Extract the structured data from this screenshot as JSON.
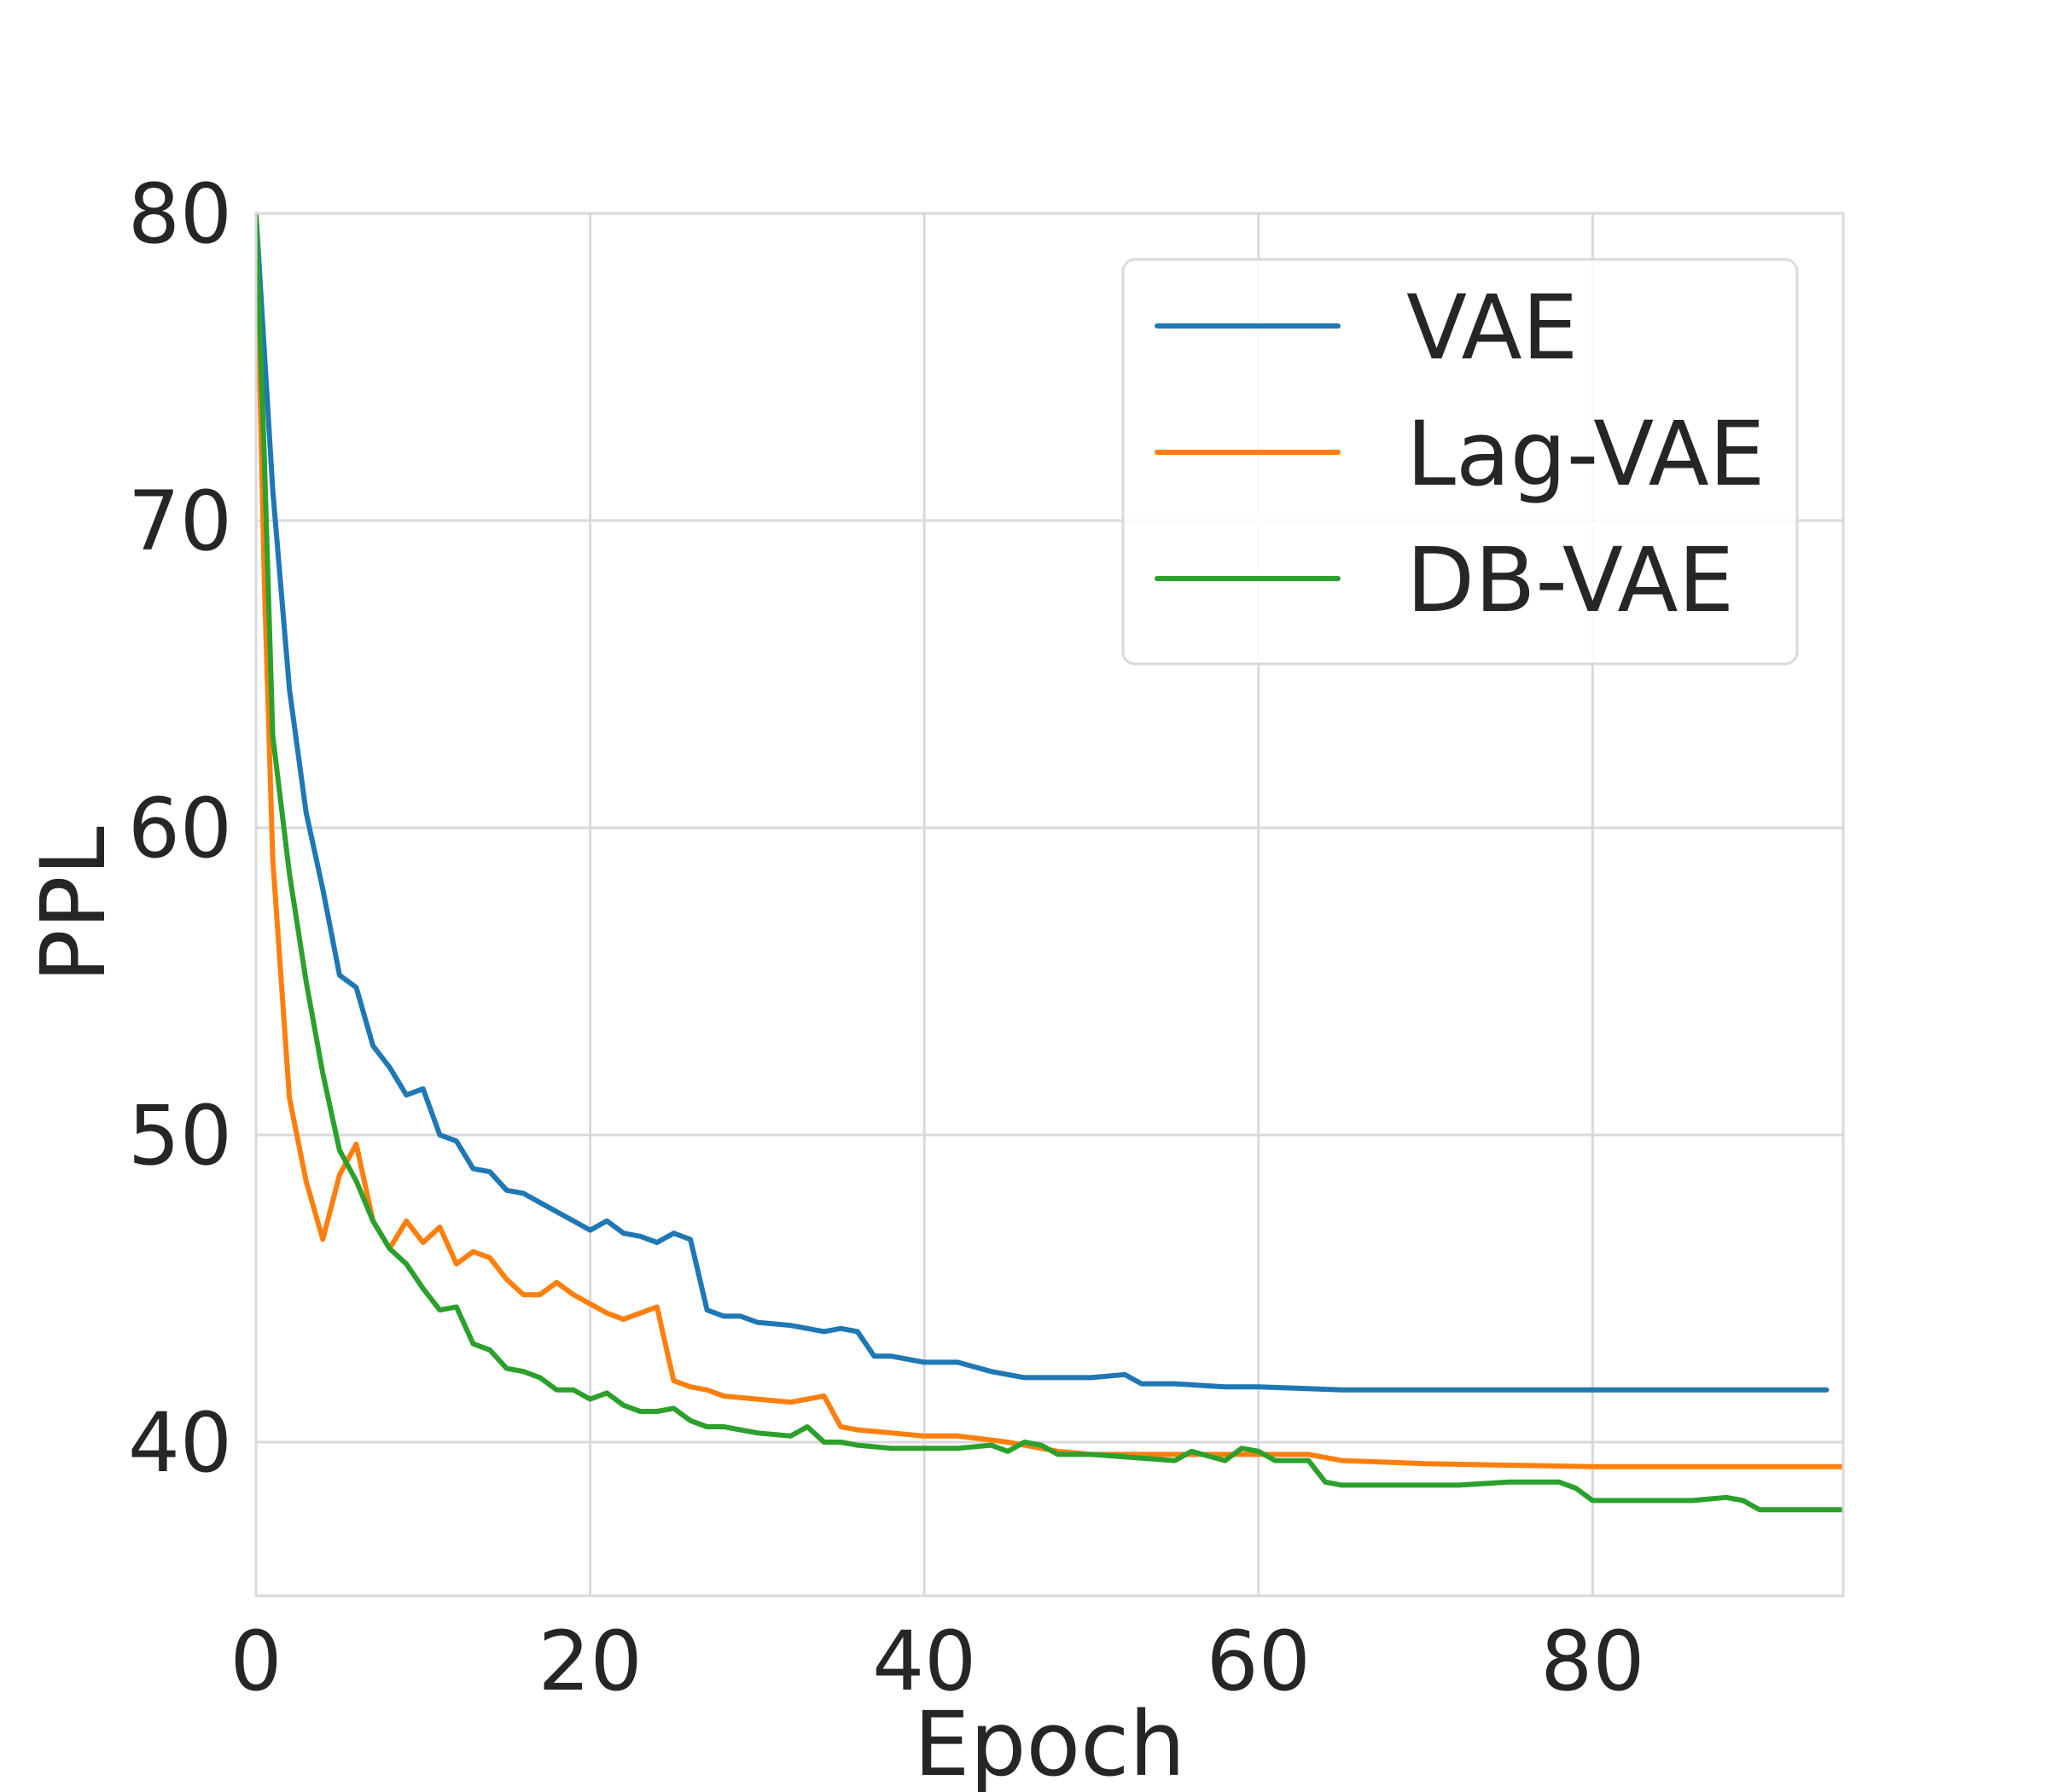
{
  "chart_data": {
    "type": "line",
    "title": "",
    "xlabel": "Epoch",
    "ylabel": "PPL",
    "xlim": [
      0,
      95
    ],
    "ylim": [
      35,
      80
    ],
    "xticks": [
      0,
      20,
      40,
      60,
      80
    ],
    "yticks": [
      40,
      50,
      60,
      70,
      80
    ],
    "xtick_labels": [
      "0",
      "20",
      "40",
      "60",
      "80"
    ],
    "ytick_labels": [
      "40",
      "50",
      "60",
      "70",
      "80"
    ],
    "grid": true,
    "legend_position": "top-right",
    "series": [
      {
        "name": "VAE",
        "color": "#1f77b4",
        "x": [
          0,
          1,
          2,
          3,
          4,
          5,
          6,
          7,
          8,
          9,
          10,
          11,
          12,
          13,
          14,
          15,
          16,
          17,
          18,
          19,
          20,
          21,
          22,
          23,
          24,
          25,
          26,
          27,
          28,
          29,
          30,
          32,
          34,
          35,
          36,
          37,
          38,
          40,
          42,
          44,
          46,
          48,
          50,
          52,
          53,
          55,
          58,
          60,
          65,
          70,
          80,
          94
        ],
        "values": [
          80,
          71,
          64.5,
          60.5,
          58,
          55.2,
          54.8,
          52.9,
          52.2,
          51.3,
          51.5,
          50.0,
          49.8,
          48.9,
          48.8,
          48.2,
          48.1,
          47.8,
          47.5,
          47.2,
          46.9,
          47.2,
          46.8,
          46.7,
          46.5,
          46.8,
          46.6,
          44.3,
          44.1,
          44.1,
          43.9,
          43.8,
          43.6,
          43.7,
          43.6,
          42.8,
          42.8,
          42.6,
          42.6,
          42.3,
          42.1,
          42.1,
          42.1,
          42.2,
          41.9,
          41.9,
          41.8,
          41.8,
          41.7,
          41.7,
          41.7,
          41.7
        ]
      },
      {
        "name": "Lag-VAE",
        "color": "#ff7f0e",
        "x": [
          0,
          0.5,
          1,
          2,
          3,
          4,
          5,
          6,
          7,
          8,
          9,
          10,
          11,
          12,
          13,
          14,
          15,
          16,
          17,
          18,
          19,
          20,
          21,
          22,
          23,
          24,
          25,
          26,
          27,
          28,
          30,
          32,
          34,
          35,
          36,
          38,
          40,
          42,
          45,
          48,
          50,
          60,
          63,
          65,
          70,
          80,
          95
        ],
        "values": [
          80,
          68,
          59,
          51.2,
          48.5,
          46.6,
          48.7,
          49.7,
          47.2,
          46.3,
          47.2,
          46.5,
          47.0,
          45.8,
          46.2,
          46.0,
          45.3,
          44.8,
          44.8,
          45.2,
          44.8,
          44.5,
          44.2,
          44.0,
          44.2,
          44.4,
          42.0,
          41.8,
          41.7,
          41.5,
          41.4,
          41.3,
          41.5,
          40.5,
          40.4,
          40.3,
          40.2,
          40.2,
          40.0,
          39.7,
          39.6,
          39.6,
          39.6,
          39.4,
          39.3,
          39.2,
          39.2
        ]
      },
      {
        "name": "DB-VAE",
        "color": "#2ca02c",
        "x": [
          0,
          0.5,
          1,
          2,
          3,
          4,
          5,
          6,
          7,
          8,
          9,
          10,
          11,
          12,
          13,
          14,
          15,
          16,
          17,
          18,
          19,
          20,
          21,
          22,
          23,
          24,
          25,
          26,
          27,
          28,
          30,
          32,
          33,
          34,
          35,
          36,
          38,
          40,
          42,
          44,
          45,
          46,
          47,
          48,
          50,
          55,
          56,
          58,
          59,
          60,
          61,
          62,
          63,
          64,
          65,
          70,
          72,
          75,
          77,
          78,
          79,
          80,
          82,
          84,
          86,
          88,
          89,
          90,
          92,
          94,
          95
        ],
        "values": [
          80,
          72,
          63,
          58.5,
          55.0,
          52.0,
          49.5,
          48.5,
          47.2,
          46.3,
          45.8,
          45.0,
          44.3,
          44.4,
          43.2,
          43.0,
          42.4,
          42.3,
          42.1,
          41.7,
          41.7,
          41.4,
          41.6,
          41.2,
          41.0,
          41.0,
          41.1,
          40.7,
          40.5,
          40.5,
          40.3,
          40.2,
          40.5,
          40.0,
          40.0,
          39.9,
          39.8,
          39.8,
          39.8,
          39.9,
          39.7,
          40.0,
          39.9,
          39.6,
          39.6,
          39.4,
          39.7,
          39.4,
          39.8,
          39.7,
          39.4,
          39.4,
          39.4,
          38.7,
          38.6,
          38.6,
          38.6,
          38.7,
          38.7,
          38.7,
          38.5,
          38.1,
          38.1,
          38.1,
          38.1,
          38.2,
          38.1,
          37.8,
          37.8,
          37.8,
          37.8
        ]
      }
    ]
  }
}
